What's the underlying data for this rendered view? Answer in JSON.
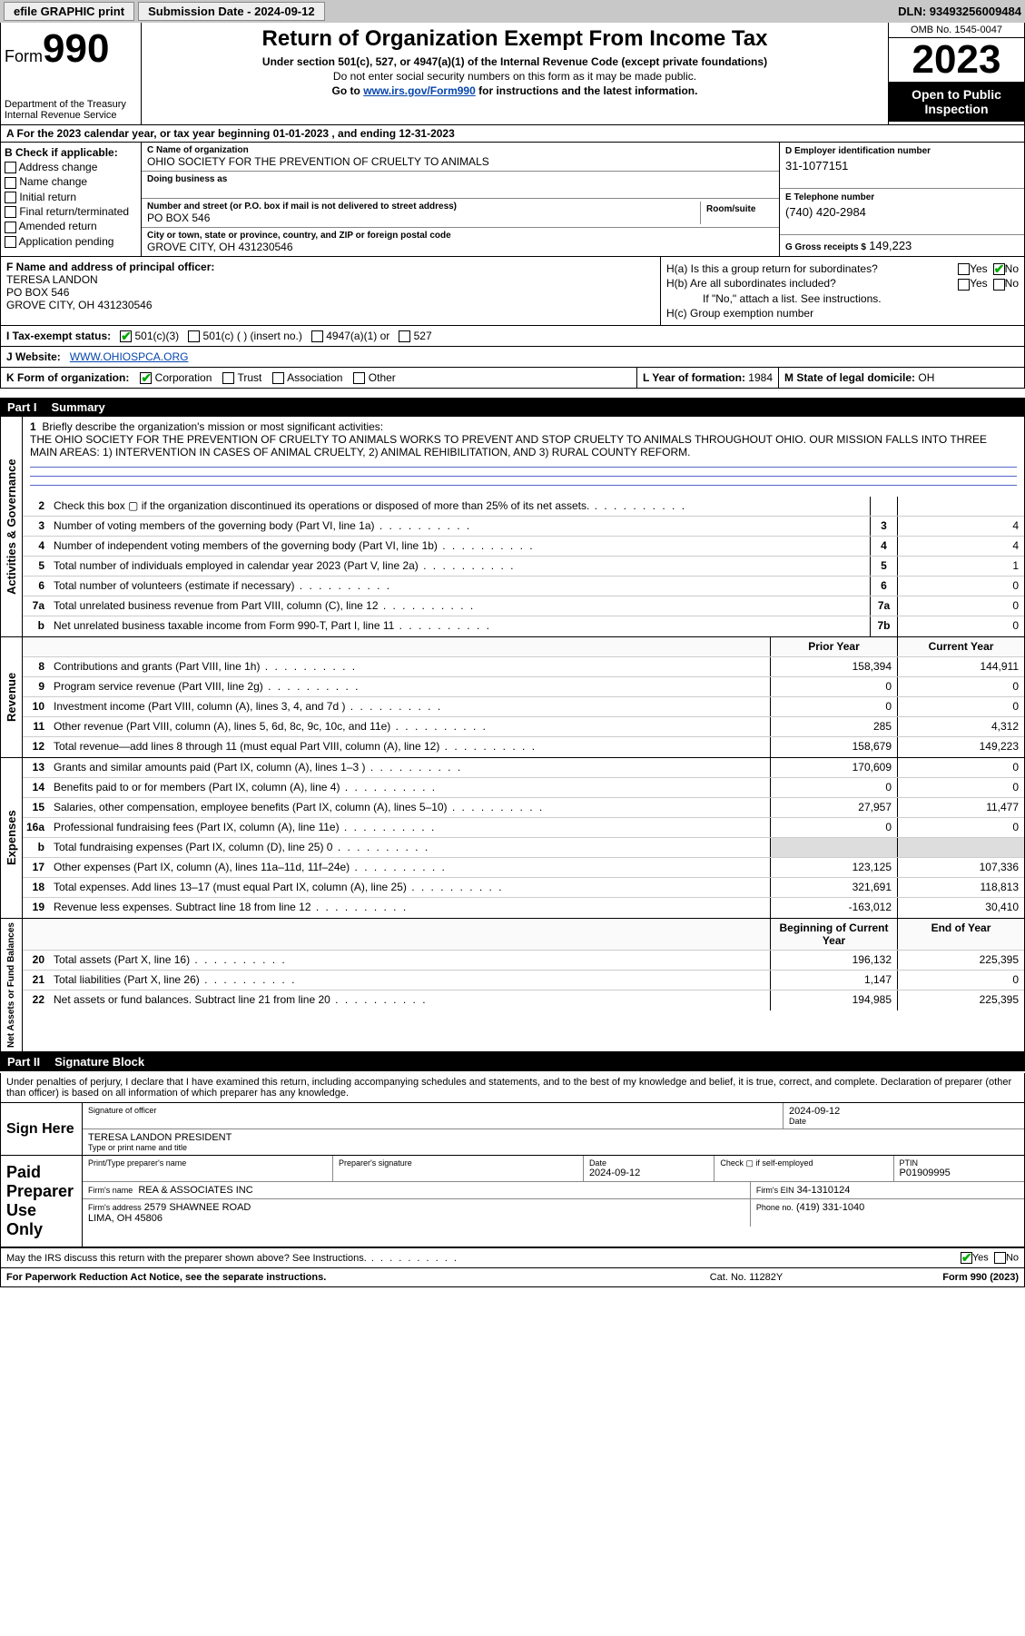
{
  "topbar": {
    "efile": "efile GRAPHIC print",
    "submission_label": "Submission Date - 2024-09-12",
    "dln": "DLN: 93493256009484"
  },
  "header": {
    "form_label": "Form",
    "form_no": "990",
    "dept": "Department of the Treasury\nInternal Revenue Service",
    "title": "Return of Organization Exempt From Income Tax",
    "sub1": "Under section 501(c), 527, or 4947(a)(1) of the Internal Revenue Code (except private foundations)",
    "sub2": "Do not enter social security numbers on this form as it may be made public.",
    "sub3_pre": "Go to ",
    "sub3_link": "www.irs.gov/Form990",
    "sub3_post": " for instructions and the latest information.",
    "omb": "OMB No. 1545-0047",
    "year": "2023",
    "open": "Open to Public Inspection"
  },
  "row_a": "A  For the 2023 calendar year, or tax year beginning 01-01-2023   , and ending 12-31-2023",
  "col_b": {
    "title": "B Check if applicable:",
    "items": [
      "Address change",
      "Name change",
      "Initial return",
      "Final return/terminated",
      "Amended return",
      "Application pending"
    ]
  },
  "col_c": {
    "name_lbl": "C Name of organization",
    "name": "OHIO SOCIETY FOR THE PREVENTION OF CRUELTY TO ANIMALS",
    "dba_lbl": "Doing business as",
    "dba": "",
    "addr_lbl": "Number and street (or P.O. box if mail is not delivered to street address)",
    "addr": "PO BOX 546",
    "room_lbl": "Room/suite",
    "city_lbl": "City or town, state or province, country, and ZIP or foreign postal code",
    "city": "GROVE CITY, OH  431230546"
  },
  "col_d": {
    "ein_lbl": "D Employer identification number",
    "ein": "31-1077151",
    "phone_lbl": "E Telephone number",
    "phone": "(740) 420-2984",
    "gross_lbl": "G Gross receipts $",
    "gross": "149,223"
  },
  "col_f": {
    "lbl": "F Name and address of principal officer:",
    "name": "TERESA LANDON",
    "addr1": "PO BOX 546",
    "addr2": "GROVE CITY, OH  431230546"
  },
  "col_h": {
    "ha": "H(a)  Is this a group return for subordinates?",
    "hb": "H(b)  Are all subordinates included?",
    "hb_note": "If \"No,\" attach a list. See instructions.",
    "hc": "H(c)  Group exemption number"
  },
  "row_i": {
    "lbl": "I    Tax-exempt status:",
    "opts": [
      "501(c)(3)",
      "501(c) (  ) (insert no.)",
      "4947(a)(1) or",
      "527"
    ]
  },
  "row_j": {
    "lbl": "J    Website:",
    "val": "WWW.OHIOSPCA.ORG"
  },
  "row_k": {
    "lbl": "K Form of organization:",
    "opts": [
      "Corporation",
      "Trust",
      "Association",
      "Other"
    ],
    "l_lbl": "L Year of formation:",
    "l_val": "1984",
    "m_lbl": "M State of legal domicile:",
    "m_val": "OH"
  },
  "part1": {
    "pt": "Part I",
    "title": "Summary"
  },
  "mission": {
    "num": "1",
    "lbl": "Briefly describe the organization's mission or most significant activities:",
    "txt": "THE OHIO SOCIETY FOR THE PREVENTION OF CRUELTY TO ANIMALS WORKS TO PREVENT AND STOP CRUELTY TO ANIMALS THROUGHOUT OHIO. OUR MISSION FALLS INTO THREE MAIN AREAS: 1) INTERVENTION IN CASES OF ANIMAL CRUELTY, 2) ANIMAL REHIBILITATION, AND 3) RURAL COUNTY REFORM."
  },
  "summary_sections": {
    "gov_label": "Activities & Governance",
    "rev_label": "Revenue",
    "exp_label": "Expenses",
    "net_label": "Net Assets or Fund Balances"
  },
  "lines_gov": [
    {
      "n": "2",
      "t": "Check this box ▢ if the organization discontinued its operations or disposed of more than 25% of its net assets.",
      "box": "",
      "v": ""
    },
    {
      "n": "3",
      "t": "Number of voting members of the governing body (Part VI, line 1a)",
      "box": "3",
      "v": "4"
    },
    {
      "n": "4",
      "t": "Number of independent voting members of the governing body (Part VI, line 1b)",
      "box": "4",
      "v": "4"
    },
    {
      "n": "5",
      "t": "Total number of individuals employed in calendar year 2023 (Part V, line 2a)",
      "box": "5",
      "v": "1"
    },
    {
      "n": "6",
      "t": "Total number of volunteers (estimate if necessary)",
      "box": "6",
      "v": "0"
    },
    {
      "n": "7a",
      "t": "Total unrelated business revenue from Part VIII, column (C), line 12",
      "box": "7a",
      "v": "0"
    },
    {
      "n": "b",
      "t": "Net unrelated business taxable income from Form 990-T, Part I, line 11",
      "box": "7b",
      "v": "0"
    }
  ],
  "hdr_rev": {
    "prior": "Prior Year",
    "curr": "Current Year"
  },
  "lines_rev": [
    {
      "n": "8",
      "t": "Contributions and grants (Part VIII, line 1h)",
      "p": "158,394",
      "c": "144,911"
    },
    {
      "n": "9",
      "t": "Program service revenue (Part VIII, line 2g)",
      "p": "0",
      "c": "0"
    },
    {
      "n": "10",
      "t": "Investment income (Part VIII, column (A), lines 3, 4, and 7d )",
      "p": "0",
      "c": "0"
    },
    {
      "n": "11",
      "t": "Other revenue (Part VIII, column (A), lines 5, 6d, 8c, 9c, 10c, and 11e)",
      "p": "285",
      "c": "4,312"
    },
    {
      "n": "12",
      "t": "Total revenue—add lines 8 through 11 (must equal Part VIII, column (A), line 12)",
      "p": "158,679",
      "c": "149,223"
    }
  ],
  "lines_exp": [
    {
      "n": "13",
      "t": "Grants and similar amounts paid (Part IX, column (A), lines 1–3 )",
      "p": "170,609",
      "c": "0"
    },
    {
      "n": "14",
      "t": "Benefits paid to or for members (Part IX, column (A), line 4)",
      "p": "0",
      "c": "0"
    },
    {
      "n": "15",
      "t": "Salaries, other compensation, employee benefits (Part IX, column (A), lines 5–10)",
      "p": "27,957",
      "c": "11,477"
    },
    {
      "n": "16a",
      "t": "Professional fundraising fees (Part IX, column (A), line 11e)",
      "p": "0",
      "c": "0"
    },
    {
      "n": "b",
      "t": "Total fundraising expenses (Part IX, column (D), line 25) 0",
      "p": "",
      "c": "",
      "shade": true
    },
    {
      "n": "17",
      "t": "Other expenses (Part IX, column (A), lines 11a–11d, 11f–24e)",
      "p": "123,125",
      "c": "107,336"
    },
    {
      "n": "18",
      "t": "Total expenses. Add lines 13–17 (must equal Part IX, column (A), line 25)",
      "p": "321,691",
      "c": "118,813"
    },
    {
      "n": "19",
      "t": "Revenue less expenses. Subtract line 18 from line 12",
      "p": "-163,012",
      "c": "30,410"
    }
  ],
  "hdr_net": {
    "prior": "Beginning of Current Year",
    "curr": "End of Year"
  },
  "lines_net": [
    {
      "n": "20",
      "t": "Total assets (Part X, line 16)",
      "p": "196,132",
      "c": "225,395"
    },
    {
      "n": "21",
      "t": "Total liabilities (Part X, line 26)",
      "p": "1,147",
      "c": "0"
    },
    {
      "n": "22",
      "t": "Net assets or fund balances. Subtract line 21 from line 20",
      "p": "194,985",
      "c": "225,395"
    }
  ],
  "part2": {
    "pt": "Part II",
    "title": "Signature Block"
  },
  "sig": {
    "intro": "Under penalties of perjury, I declare that I have examined this return, including accompanying schedules and statements, and to the best of my knowledge and belief, it is true, correct, and complete. Declaration of preparer (other than officer) is based on all information of which preparer has any knowledge.",
    "sign_here": "Sign Here",
    "sig_officer_lbl": "Signature of officer",
    "officer": "TERESA LANDON PRESIDENT",
    "name_title_lbl": "Type or print name and title",
    "date_lbl": "Date",
    "date": "2024-09-12",
    "paid": "Paid Preparer Use Only",
    "prep_name_lbl": "Print/Type preparer's name",
    "prep_sig_lbl": "Preparer's signature",
    "prep_date": "2024-09-12",
    "check_lbl": "Check ▢ if self-employed",
    "ptin_lbl": "PTIN",
    "ptin": "P01909995",
    "firm_name_lbl": "Firm's name",
    "firm_name": "REA & ASSOCIATES INC",
    "firm_ein_lbl": "Firm's EIN",
    "firm_ein": "34-1310124",
    "firm_addr_lbl": "Firm's address",
    "firm_addr": "2579 SHAWNEE ROAD\nLIMA, OH  45806",
    "phone_lbl": "Phone no.",
    "phone": "(419) 331-1040",
    "discuss": "May the IRS discuss this return with the preparer shown above? See Instructions."
  },
  "footer": {
    "l": "For Paperwork Reduction Act Notice, see the separate instructions.",
    "c": "Cat. No. 11282Y",
    "r": "Form 990 (2023)"
  },
  "colors": {
    "topbar_bg": "#c8c8c8",
    "link": "#0645ad",
    "black": "#000000",
    "shade": "#dddddd",
    "check_green": "#00aa00"
  }
}
